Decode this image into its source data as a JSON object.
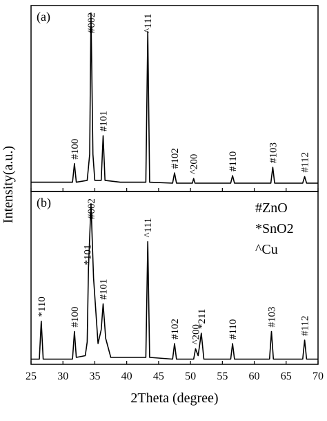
{
  "xlabel": "2Theta (degree)",
  "ylabel": "Intensity(a.u.)",
  "chart_data": [
    {
      "type": "line",
      "title": "(a)",
      "color": "#000000",
      "xlim": [
        25,
        70
      ],
      "ylim": [
        0,
        100
      ],
      "xticks": [
        25,
        30,
        35,
        40,
        45,
        50,
        55,
        60,
        65,
        70
      ],
      "x": [
        25,
        30,
        31.5,
        31.8,
        32.1,
        33.8,
        34.2,
        34.4,
        34.7,
        35,
        36.0,
        36.3,
        36.6,
        39,
        43.0,
        43.3,
        43.6,
        47.2,
        47.5,
        47.8,
        50.3,
        50.5,
        50.7,
        56.3,
        56.6,
        56.9,
        62.6,
        62.9,
        63.2,
        67.6,
        67.9,
        68.2,
        70
      ],
      "values": [
        5,
        5,
        5,
        15,
        5,
        6,
        20,
        96,
        20,
        6,
        6,
        30,
        6,
        5,
        5,
        86,
        5,
        4.5,
        10,
        4.5,
        4.5,
        7,
        4.5,
        4.5,
        8.5,
        4.5,
        4.5,
        13,
        4.5,
        4.5,
        8,
        4.5,
        4.5
      ],
      "annotations": [
        {
          "text": "#100",
          "x": 31.8
        },
        {
          "text": "#002",
          "x": 34.4
        },
        {
          "text": "#101",
          "x": 36.3
        },
        {
          "text": "^111",
          "x": 43.3
        },
        {
          "text": "#102",
          "x": 47.5
        },
        {
          "text": "^200",
          "x": 50.5
        },
        {
          "text": "#110",
          "x": 56.6
        },
        {
          "text": "#103",
          "x": 62.9
        },
        {
          "text": "#112",
          "x": 67.9
        }
      ]
    },
    {
      "type": "line",
      "title": "(b)",
      "color": "#000000",
      "xlim": [
        25,
        70
      ],
      "ylim": [
        0,
        100
      ],
      "xticks": [
        25,
        30,
        35,
        40,
        45,
        50,
        55,
        60,
        65,
        70
      ],
      "x": [
        25,
        26.3,
        26.6,
        26.9,
        31.5,
        31.8,
        32.1,
        33.5,
        33.8,
        34.0,
        34.4,
        34.8,
        35.5,
        36.0,
        36.3,
        36.7,
        37.5,
        43.0,
        43.3,
        43.6,
        47.2,
        47.5,
        47.8,
        50.5,
        50.8,
        51.2,
        51.7,
        52.1,
        56.3,
        56.6,
        56.9,
        62.4,
        62.7,
        63.0,
        67.6,
        67.9,
        68.2,
        70
      ],
      "values": [
        3,
        3,
        25,
        3,
        3,
        19,
        4,
        5,
        13,
        55,
        93,
        50,
        12,
        20,
        35,
        15,
        4,
        4,
        71,
        4,
        3,
        12,
        3,
        3,
        9,
        5,
        18,
        3,
        3,
        12,
        3,
        3,
        19,
        3,
        3,
        14,
        3,
        3
      ],
      "annotations": [
        {
          "text": "*110",
          "x": 26.6
        },
        {
          "text": "#100",
          "x": 31.8
        },
        {
          "text": "*101",
          "x": 33.8
        },
        {
          "text": "#002",
          "x": 34.4
        },
        {
          "text": "#101",
          "x": 36.3
        },
        {
          "text": "^111",
          "x": 43.3
        },
        {
          "text": "#102",
          "x": 47.5
        },
        {
          "text": "^200",
          "x": 50.8
        },
        {
          "text": "*211",
          "x": 51.7
        },
        {
          "text": "#110",
          "x": 56.6
        },
        {
          "text": "#103",
          "x": 62.7
        },
        {
          "text": "#112",
          "x": 67.9
        }
      ],
      "notes": [
        "#ZnO",
        "*SnO2",
        "^Cu"
      ]
    }
  ]
}
